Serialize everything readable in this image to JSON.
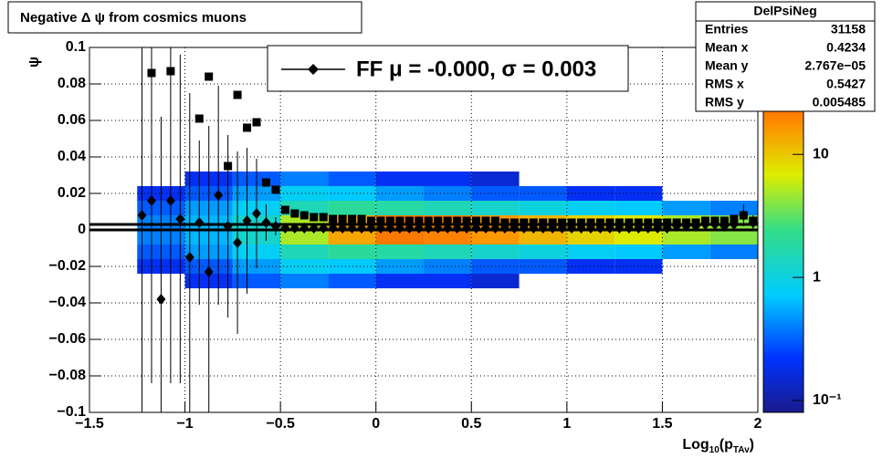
{
  "chart_data": {
    "type": "histogram2d_profile",
    "title": "Negative Δ ψ from cosmics muons",
    "ylabel": "ψ",
    "xlabel_parts": [
      "Log",
      "10",
      "(p",
      "TAv",
      ")"
    ],
    "legend_text": "FF μ = -0.000, σ =   0.003",
    "stats": {
      "name": "DelPsiNeg",
      "rows": [
        [
          "Entries",
          "31158"
        ],
        [
          "Mean x",
          "0.4234"
        ],
        [
          "Mean y",
          "2.767e−05"
        ],
        [
          "RMS x",
          "0.5427"
        ],
        [
          "RMS y",
          "0.005485"
        ]
      ]
    },
    "xlim": [
      -1.5,
      2
    ],
    "ylim": [
      -0.1,
      0.1
    ],
    "xticks": [
      {
        "value": -1.5,
        "label": "−1.5"
      },
      {
        "value": -1,
        "label": "−1"
      },
      {
        "value": -0.5,
        "label": "−0.5"
      },
      0,
      0.5,
      1,
      1.5,
      2
    ],
    "yticks": [
      {
        "value": -0.1,
        "label": "−0.1"
      },
      {
        "value": -0.08,
        "label": "−0.08"
      },
      {
        "value": -0.06,
        "label": "−0.06"
      },
      {
        "value": -0.04,
        "label": "−0.04"
      },
      {
        "value": -0.02,
        "label": "−0.02"
      },
      0,
      0.02,
      0.04,
      0.06,
      0.08,
      0.1
    ],
    "grid": true,
    "zlim": [
      0.08,
      74
    ],
    "zlog": true,
    "zticks": [
      {
        "value": 0.1,
        "label": "10⁻¹"
      },
      1,
      10
    ],
    "xbins": [
      -1.5,
      -1.25,
      -1,
      -0.75,
      -0.5,
      -0.25,
      0,
      0.25,
      0.5,
      0.75,
      1,
      1.25,
      1.5,
      1.75,
      2
    ],
    "ybins": [
      -0.032,
      -0.024,
      -0.016,
      -0.008,
      0,
      0.008,
      0.016,
      0.024,
      0.032
    ],
    "z": [
      [
        0,
        0,
        0.2,
        0.3,
        0.4,
        0.3,
        0.2,
        0.2,
        0.15,
        0,
        0,
        0,
        0,
        0
      ],
      [
        0,
        0.2,
        0.3,
        0.5,
        0.8,
        0.7,
        0.5,
        0.4,
        0.3,
        0.3,
        0.2,
        0.2,
        0,
        0
      ],
      [
        0,
        0.3,
        0.5,
        0.8,
        1.5,
        2,
        1.8,
        1.5,
        1.2,
        1,
        0.8,
        0.7,
        0.5,
        0.4
      ],
      [
        0,
        0.4,
        0.6,
        1.2,
        5,
        14,
        22,
        20,
        16,
        12,
        9,
        7,
        5,
        4
      ],
      [
        0,
        0.4,
        0.6,
        1.2,
        5,
        14,
        22,
        20,
        16,
        12,
        9,
        7,
        5,
        4
      ],
      [
        0,
        0.3,
        0.5,
        0.8,
        1.5,
        2,
        1.8,
        1.5,
        1.2,
        1,
        0.8,
        0.7,
        0.5,
        0.4
      ],
      [
        0,
        0.2,
        0.3,
        0.5,
        0.8,
        0.7,
        0.5,
        0.4,
        0.3,
        0.3,
        0.2,
        0.2,
        0,
        0
      ],
      [
        0,
        0,
        0.2,
        0.3,
        0.4,
        0.3,
        0.2,
        0.2,
        0.15,
        0,
        0,
        0,
        0,
        0
      ]
    ],
    "hlines": [
      0,
      0.003
    ],
    "x": [
      -1.225,
      -1.175,
      -1.125,
      -1.075,
      -1.025,
      -0.975,
      -0.925,
      -0.875,
      -0.825,
      -0.775,
      -0.725,
      -0.675,
      -0.625,
      -0.575,
      -0.525,
      -0.475,
      -0.425,
      -0.375,
      -0.325,
      -0.275,
      -0.225,
      -0.175,
      -0.125,
      -0.075,
      -0.025,
      0.025,
      0.075,
      0.125,
      0.175,
      0.225,
      0.275,
      0.325,
      0.375,
      0.425,
      0.475,
      0.525,
      0.575,
      0.625,
      0.675,
      0.725,
      0.775,
      0.825,
      0.875,
      0.925,
      0.975,
      1.025,
      1.075,
      1.125,
      1.175,
      1.225,
      1.275,
      1.325,
      1.375,
      1.425,
      1.475,
      1.525,
      1.575,
      1.625,
      1.675,
      1.725,
      1.775,
      1.825,
      1.875,
      1.925,
      1.975
    ],
    "series": [
      {
        "marker": "diamond",
        "color": "#000000",
        "values": [
          0.008,
          0.016,
          -0.038,
          0.016,
          0.006,
          -0.015,
          0.004,
          -0.023,
          0.019,
          0.002,
          -0.007,
          0.005,
          0.009,
          0.004,
          0.002,
          0.001,
          0.001,
          0.001,
          0.001,
          0.001,
          0.001,
          0.001,
          0.001,
          0.001,
          0.001,
          0.001,
          0.001,
          0.001,
          0.001,
          0.001,
          0.001,
          0.001,
          0.001,
          0.001,
          0.001,
          0.001,
          0.001,
          0.001,
          0.001,
          0.001,
          0.001,
          0.001,
          0.001,
          0.001,
          0.001,
          0.001,
          0.001,
          0.001,
          0.001,
          0.001,
          0.001,
          0.001,
          0.001,
          0.001,
          0.001,
          0.001,
          0.002,
          0.002,
          0.002,
          0.003,
          0.003,
          0.002,
          0.003,
          0.008,
          0.004
        ],
        "errors": [
          0.13,
          0.1,
          0.1,
          0.1,
          0.09,
          0.09,
          0.045,
          0.08,
          0.06,
          0.05,
          0.05,
          0.04,
          0.03,
          0.01,
          0.005,
          0.002,
          0.001,
          0.001,
          0.001,
          0.001,
          0.001,
          0.001,
          0.001,
          0.001,
          0.001,
          0.001,
          0.001,
          0.001,
          0.001,
          0.001,
          0.001,
          0.001,
          0.001,
          0.001,
          0.001,
          0.001,
          0.001,
          0.001,
          0.001,
          0.001,
          0.001,
          0.001,
          0.001,
          0.001,
          0.001,
          0.001,
          0.001,
          0.001,
          0.001,
          0.001,
          0.001,
          0.001,
          0.001,
          0.001,
          0.001,
          0.001,
          0.001,
          0.001,
          0.001,
          0.002,
          0.002,
          0.002,
          0.003,
          0.006,
          0.004
        ]
      },
      {
        "marker": "square",
        "color": "#000000",
        "values": [
          null,
          0.086,
          null,
          0.087,
          null,
          null,
          0.061,
          0.084,
          null,
          0.035,
          0.074,
          0.056,
          0.059,
          0.026,
          0.022,
          0.011,
          0.009,
          0.008,
          0.007,
          0.007,
          0.006,
          0.006,
          0.006,
          0.006,
          0.005,
          0.005,
          0.005,
          0.005,
          0.005,
          0.005,
          0.005,
          0.005,
          0.005,
          0.005,
          0.005,
          0.005,
          0.005,
          0.005,
          0.004,
          0.004,
          0.004,
          0.004,
          0.004,
          0.004,
          0.004,
          0.004,
          0.004,
          0.004,
          0.004,
          0.004,
          0.004,
          0.004,
          0.004,
          0.004,
          0.004,
          0.004,
          0.004,
          0.004,
          0.004,
          0.005,
          0.005,
          0.005,
          0.006,
          0.008,
          0.005
        ]
      }
    ]
  }
}
